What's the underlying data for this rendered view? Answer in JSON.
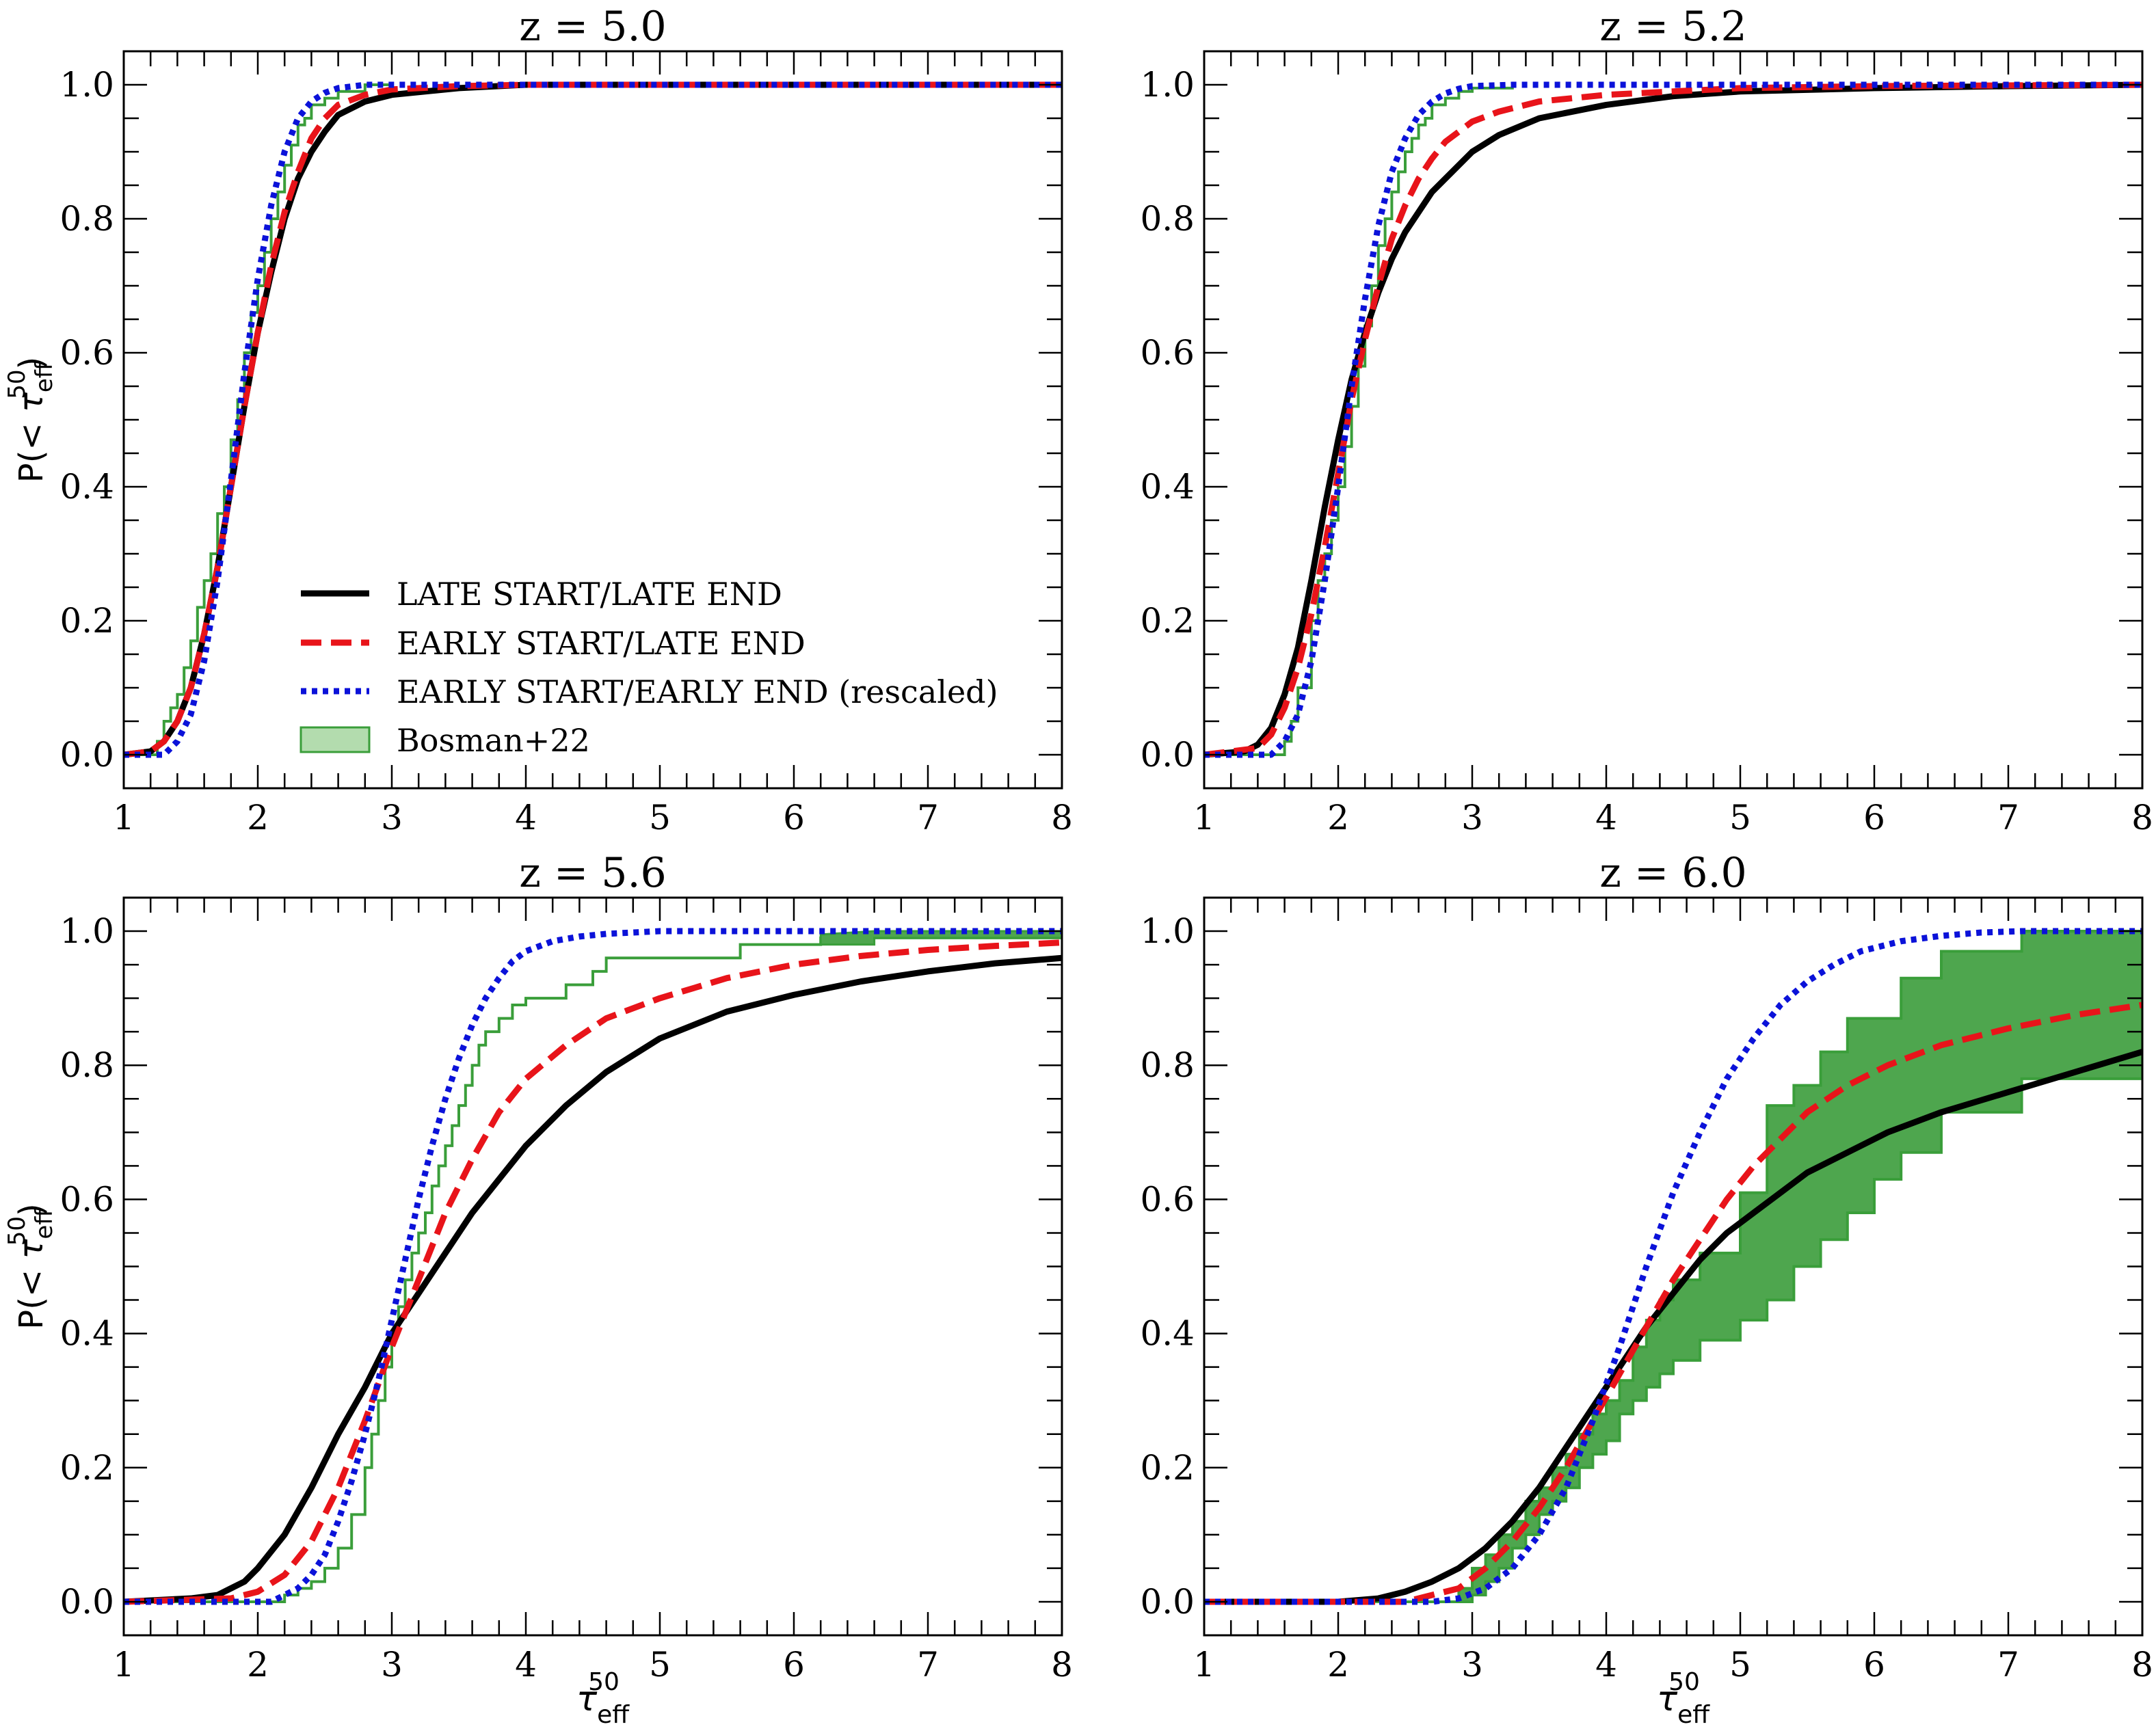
{
  "chart_data": [
    {
      "type": "line",
      "title": "z = 5.0",
      "xlabel": "τ_eff^50",
      "ylabel": "P(< τ_eff^50)",
      "xlim": [
        1,
        8
      ],
      "ylim": [
        -0.05,
        1.05
      ],
      "xticks": [
        "1",
        "2",
        "3",
        "4",
        "5",
        "6",
        "7",
        "8"
      ],
      "yticks": [
        "0.0",
        "0.2",
        "0.4",
        "0.6",
        "0.8",
        "1.0"
      ],
      "legend": {
        "position": "lower-right",
        "entries": [
          "LATE START/LATE END",
          "EARLY START/LATE END",
          "EARLY START/EARLY END (rescaled)",
          "Bosman+22"
        ]
      },
      "series": [
        {
          "name": "LATE START/LATE END",
          "x": [
            1.0,
            1.2,
            1.3,
            1.4,
            1.5,
            1.6,
            1.7,
            1.8,
            1.9,
            2.0,
            2.1,
            2.2,
            2.3,
            2.4,
            2.5,
            2.6,
            2.8,
            3.0,
            3.5,
            4.0,
            5.0,
            8.0
          ],
          "y": [
            0.0,
            0.005,
            0.02,
            0.05,
            0.1,
            0.18,
            0.28,
            0.4,
            0.52,
            0.63,
            0.72,
            0.8,
            0.86,
            0.9,
            0.93,
            0.955,
            0.975,
            0.985,
            0.995,
            1.0,
            1.0,
            1.0
          ]
        },
        {
          "name": "EARLY START/LATE END",
          "x": [
            1.0,
            1.2,
            1.3,
            1.4,
            1.5,
            1.6,
            1.7,
            1.8,
            1.9,
            2.0,
            2.1,
            2.2,
            2.3,
            2.4,
            2.5,
            2.6,
            2.8,
            3.0,
            3.5,
            4.0,
            8.0
          ],
          "y": [
            0.0,
            0.005,
            0.02,
            0.05,
            0.1,
            0.18,
            0.28,
            0.4,
            0.52,
            0.63,
            0.73,
            0.81,
            0.87,
            0.92,
            0.95,
            0.97,
            0.985,
            0.993,
            0.998,
            1.0,
            1.0
          ]
        },
        {
          "name": "EARLY START/EARLY END (rescaled)",
          "x": [
            1.0,
            1.3,
            1.4,
            1.5,
            1.6,
            1.7,
            1.8,
            1.9,
            2.0,
            2.1,
            2.2,
            2.3,
            2.4,
            2.5,
            2.6,
            2.8,
            3.0,
            8.0
          ],
          "y": [
            0.0,
            0.0,
            0.02,
            0.06,
            0.14,
            0.26,
            0.41,
            0.57,
            0.71,
            0.82,
            0.9,
            0.95,
            0.975,
            0.988,
            0.995,
            1.0,
            1.0,
            1.0
          ]
        },
        {
          "name": "Bosman+22",
          "x": [
            1.0,
            1.25,
            1.3,
            1.35,
            1.4,
            1.45,
            1.5,
            1.55,
            1.6,
            1.65,
            1.7,
            1.75,
            1.8,
            1.85,
            1.9,
            1.95,
            2.0,
            2.05,
            2.1,
            2.15,
            2.2,
            2.25,
            2.3,
            2.35,
            2.4,
            2.5,
            2.6,
            2.8,
            3.0
          ],
          "y": [
            0.0,
            0.02,
            0.05,
            0.07,
            0.09,
            0.13,
            0.17,
            0.22,
            0.26,
            0.3,
            0.36,
            0.4,
            0.47,
            0.53,
            0.6,
            0.66,
            0.7,
            0.75,
            0.8,
            0.84,
            0.88,
            0.91,
            0.94,
            0.95,
            0.97,
            0.98,
            0.99,
            1.0,
            1.0
          ]
        }
      ]
    },
    {
      "type": "line",
      "title": "z = 5.2",
      "xlabel": "τ_eff^50",
      "ylabel": "P(< τ_eff^50)",
      "xlim": [
        1,
        8
      ],
      "ylim": [
        -0.05,
        1.05
      ],
      "xticks": [
        "1",
        "2",
        "3",
        "4",
        "5",
        "6",
        "7",
        "8"
      ],
      "yticks": [
        "0.0",
        "0.2",
        "0.4",
        "0.6",
        "0.8",
        "1.0"
      ],
      "series": [
        {
          "name": "LATE START/LATE END",
          "x": [
            1.0,
            1.3,
            1.4,
            1.5,
            1.6,
            1.7,
            1.8,
            1.9,
            2.0,
            2.1,
            2.2,
            2.3,
            2.4,
            2.5,
            2.6,
            2.7,
            2.8,
            3.0,
            3.2,
            3.5,
            4.0,
            4.5,
            5.0,
            6.0,
            7.0,
            8.0
          ],
          "y": [
            0.0,
            0.005,
            0.015,
            0.04,
            0.09,
            0.16,
            0.26,
            0.37,
            0.47,
            0.56,
            0.63,
            0.69,
            0.74,
            0.78,
            0.81,
            0.84,
            0.86,
            0.9,
            0.925,
            0.95,
            0.97,
            0.983,
            0.99,
            0.995,
            0.998,
            1.0
          ]
        },
        {
          "name": "EARLY START/LATE END",
          "x": [
            1.0,
            1.4,
            1.5,
            1.6,
            1.7,
            1.8,
            1.9,
            2.0,
            2.1,
            2.2,
            2.3,
            2.4,
            2.5,
            2.6,
            2.7,
            2.8,
            3.0,
            3.2,
            3.5,
            4.0,
            4.5,
            5.0,
            6.0,
            8.0
          ],
          "y": [
            0.0,
            0.01,
            0.03,
            0.07,
            0.13,
            0.21,
            0.31,
            0.42,
            0.53,
            0.62,
            0.7,
            0.77,
            0.82,
            0.86,
            0.89,
            0.915,
            0.945,
            0.96,
            0.975,
            0.985,
            0.99,
            0.995,
            0.998,
            1.0
          ]
        },
        {
          "name": "EARLY START/EARLY END (rescaled)",
          "x": [
            1.0,
            1.5,
            1.6,
            1.7,
            1.8,
            1.9,
            2.0,
            2.1,
            2.2,
            2.3,
            2.4,
            2.5,
            2.6,
            2.7,
            2.8,
            2.9,
            3.0,
            3.3,
            8.0
          ],
          "y": [
            0.0,
            0.0,
            0.02,
            0.06,
            0.14,
            0.26,
            0.4,
            0.55,
            0.68,
            0.79,
            0.87,
            0.92,
            0.955,
            0.975,
            0.987,
            0.994,
            0.998,
            1.0,
            1.0
          ]
        },
        {
          "name": "Bosman+22",
          "x": [
            1.0,
            1.5,
            1.6,
            1.65,
            1.7,
            1.8,
            1.85,
            1.9,
            1.95,
            2.0,
            2.05,
            2.1,
            2.15,
            2.2,
            2.25,
            2.3,
            2.35,
            2.4,
            2.45,
            2.5,
            2.55,
            2.6,
            2.65,
            2.7,
            2.8,
            2.9,
            3.0,
            3.3
          ],
          "y": [
            0.0,
            0.0,
            0.02,
            0.05,
            0.1,
            0.2,
            0.26,
            0.3,
            0.35,
            0.4,
            0.46,
            0.52,
            0.58,
            0.64,
            0.7,
            0.76,
            0.8,
            0.84,
            0.87,
            0.9,
            0.92,
            0.94,
            0.95,
            0.97,
            0.98,
            0.99,
            0.995,
            1.0
          ]
        }
      ]
    },
    {
      "type": "line",
      "title": "z = 5.6",
      "xlabel": "τ_eff^50",
      "ylabel": "P(< τ_eff^50)",
      "xlim": [
        1,
        8
      ],
      "ylim": [
        -0.05,
        1.05
      ],
      "xticks": [
        "1",
        "2",
        "3",
        "4",
        "5",
        "6",
        "7",
        "8"
      ],
      "yticks": [
        "0.0",
        "0.2",
        "0.4",
        "0.6",
        "0.8",
        "1.0"
      ],
      "series": [
        {
          "name": "LATE START/LATE END",
          "x": [
            1.0,
            1.5,
            1.7,
            1.8,
            1.9,
            2.0,
            2.2,
            2.4,
            2.6,
            2.8,
            3.0,
            3.2,
            3.4,
            3.6,
            3.8,
            4.0,
            4.3,
            4.6,
            5.0,
            5.5,
            6.0,
            6.5,
            7.0,
            7.5,
            8.0
          ],
          "y": [
            0.0,
            0.005,
            0.01,
            0.02,
            0.03,
            0.05,
            0.1,
            0.17,
            0.25,
            0.32,
            0.4,
            0.46,
            0.52,
            0.58,
            0.63,
            0.68,
            0.74,
            0.79,
            0.84,
            0.88,
            0.905,
            0.925,
            0.94,
            0.952,
            0.96
          ]
        },
        {
          "name": "EARLY START/LATE END",
          "x": [
            1.0,
            1.8,
            2.0,
            2.2,
            2.4,
            2.6,
            2.8,
            3.0,
            3.2,
            3.4,
            3.6,
            3.8,
            4.0,
            4.3,
            4.6,
            5.0,
            5.5,
            6.0,
            6.5,
            7.0,
            7.5,
            8.0
          ],
          "y": [
            0.0,
            0.005,
            0.015,
            0.04,
            0.09,
            0.17,
            0.27,
            0.38,
            0.48,
            0.58,
            0.66,
            0.73,
            0.78,
            0.83,
            0.87,
            0.9,
            0.93,
            0.95,
            0.963,
            0.972,
            0.978,
            0.983
          ]
        },
        {
          "name": "EARLY START/EARLY END (rescaled)",
          "x": [
            1.0,
            2.1,
            2.2,
            2.3,
            2.4,
            2.5,
            2.6,
            2.7,
            2.8,
            2.9,
            3.0,
            3.1,
            3.2,
            3.3,
            3.4,
            3.5,
            3.6,
            3.7,
            3.8,
            3.9,
            4.0,
            4.2,
            4.4,
            4.6,
            4.8,
            5.0,
            8.0
          ],
          "y": [
            0.0,
            0.0,
            0.01,
            0.02,
            0.04,
            0.07,
            0.12,
            0.18,
            0.25,
            0.33,
            0.42,
            0.51,
            0.6,
            0.68,
            0.75,
            0.81,
            0.86,
            0.9,
            0.93,
            0.955,
            0.97,
            0.985,
            0.992,
            0.996,
            0.998,
            1.0,
            1.0
          ]
        },
        {
          "name": "Bosman+22",
          "x": [
            1.0,
            2.1,
            2.2,
            2.3,
            2.4,
            2.5,
            2.6,
            2.7,
            2.8,
            2.85,
            2.9,
            2.95,
            3.0,
            3.05,
            3.1,
            3.15,
            3.2,
            3.25,
            3.3,
            3.35,
            3.4,
            3.45,
            3.5,
            3.55,
            3.6,
            3.65,
            3.7,
            3.8,
            3.9,
            4.0,
            4.3,
            4.5,
            4.6,
            5.6,
            6.2,
            8.0
          ],
          "y": [
            0.0,
            0.0,
            0.01,
            0.02,
            0.03,
            0.05,
            0.08,
            0.13,
            0.2,
            0.25,
            0.3,
            0.35,
            0.4,
            0.44,
            0.48,
            0.52,
            0.55,
            0.58,
            0.62,
            0.65,
            0.68,
            0.71,
            0.74,
            0.77,
            0.8,
            0.83,
            0.85,
            0.87,
            0.89,
            0.9,
            0.92,
            0.94,
            0.96,
            0.98,
            0.99,
            0.995
          ]
        }
      ]
    },
    {
      "type": "line",
      "title": "z = 6.0",
      "xlabel": "τ_eff^50",
      "ylabel": "P(< τ_eff^50)",
      "xlim": [
        1,
        8
      ],
      "ylim": [
        -0.05,
        1.05
      ],
      "xticks": [
        "1",
        "2",
        "3",
        "4",
        "5",
        "6",
        "7",
        "8"
      ],
      "yticks": [
        "0.0",
        "0.2",
        "0.4",
        "0.6",
        "0.8",
        "1.0"
      ],
      "series": [
        {
          "name": "LATE START/LATE END",
          "x": [
            1.0,
            2.0,
            2.3,
            2.5,
            2.7,
            2.9,
            3.1,
            3.3,
            3.5,
            3.7,
            3.9,
            4.1,
            4.3,
            4.5,
            4.7,
            4.9,
            5.1,
            5.3,
            5.5,
            5.8,
            6.1,
            6.5,
            7.0,
            7.5,
            8.0
          ],
          "y": [
            0.0,
            0.0,
            0.005,
            0.015,
            0.03,
            0.05,
            0.08,
            0.12,
            0.17,
            0.23,
            0.29,
            0.35,
            0.41,
            0.46,
            0.51,
            0.55,
            0.58,
            0.61,
            0.64,
            0.67,
            0.7,
            0.73,
            0.76,
            0.79,
            0.82
          ]
        },
        {
          "name": "EARLY START/LATE END",
          "x": [
            1.0,
            2.5,
            2.7,
            2.9,
            3.1,
            3.3,
            3.5,
            3.7,
            3.9,
            4.1,
            4.3,
            4.5,
            4.7,
            4.9,
            5.1,
            5.3,
            5.5,
            5.8,
            6.1,
            6.5,
            7.0,
            7.5,
            8.0
          ],
          "y": [
            0.0,
            0.0,
            0.01,
            0.02,
            0.05,
            0.09,
            0.14,
            0.2,
            0.27,
            0.34,
            0.41,
            0.48,
            0.54,
            0.6,
            0.65,
            0.69,
            0.73,
            0.77,
            0.8,
            0.83,
            0.855,
            0.875,
            0.89
          ]
        },
        {
          "name": "EARLY START/EARLY END (rescaled)",
          "x": [
            1.0,
            2.7,
            2.9,
            3.1,
            3.3,
            3.5,
            3.7,
            3.9,
            4.1,
            4.3,
            4.5,
            4.7,
            4.9,
            5.1,
            5.3,
            5.5,
            5.7,
            5.9,
            6.2,
            6.5,
            6.8,
            7.1,
            7.5,
            8.0
          ],
          "y": [
            0.0,
            0.0,
            0.005,
            0.02,
            0.05,
            0.1,
            0.17,
            0.27,
            0.38,
            0.5,
            0.61,
            0.7,
            0.78,
            0.84,
            0.89,
            0.925,
            0.95,
            0.97,
            0.985,
            0.993,
            0.998,
            1.0,
            1.0,
            1.0
          ]
        },
        {
          "name": "Bosman+22 upper",
          "x": [
            1.0,
            2.0,
            2.9,
            3.0,
            3.1,
            3.2,
            3.3,
            3.4,
            3.5,
            3.6,
            3.7,
            3.8,
            3.9,
            4.0,
            4.1,
            4.2,
            4.3,
            4.4,
            4.5,
            4.7,
            5.0,
            5.2,
            5.4,
            5.6,
            5.8,
            6.0,
            6.2,
            6.5,
            7.1,
            8.0
          ],
          "y": [
            0.0,
            0.0,
            0.02,
            0.05,
            0.07,
            0.1,
            0.12,
            0.15,
            0.17,
            0.2,
            0.22,
            0.25,
            0.28,
            0.3,
            0.33,
            0.38,
            0.42,
            0.45,
            0.48,
            0.52,
            0.61,
            0.74,
            0.77,
            0.82,
            0.87,
            0.87,
            0.93,
            0.97,
            1.0,
            1.0
          ]
        },
        {
          "name": "Bosman+22 lower",
          "x": [
            1.0,
            2.0,
            2.9,
            3.0,
            3.1,
            3.2,
            3.3,
            3.4,
            3.5,
            3.6,
            3.7,
            3.8,
            3.9,
            4.0,
            4.1,
            4.2,
            4.3,
            4.4,
            4.5,
            4.7,
            5.0,
            5.2,
            5.4,
            5.6,
            5.8,
            6.0,
            6.2,
            6.5,
            7.1,
            8.0
          ],
          "y": [
            0.0,
            0.0,
            0.0,
            0.01,
            0.03,
            0.05,
            0.08,
            0.1,
            0.13,
            0.15,
            0.17,
            0.2,
            0.22,
            0.24,
            0.28,
            0.3,
            0.32,
            0.34,
            0.36,
            0.39,
            0.42,
            0.45,
            0.5,
            0.54,
            0.58,
            0.63,
            0.67,
            0.73,
            0.78,
            0.78
          ]
        }
      ]
    }
  ],
  "colors": {
    "late_start_late_end": "#000000",
    "early_start_late_end": "#e8141a",
    "early_start_early_end": "#0b12d9",
    "bosman": "#3a9e3a",
    "bosman_fill": "#4ea64e",
    "legend_patch": "#b3dcae"
  }
}
